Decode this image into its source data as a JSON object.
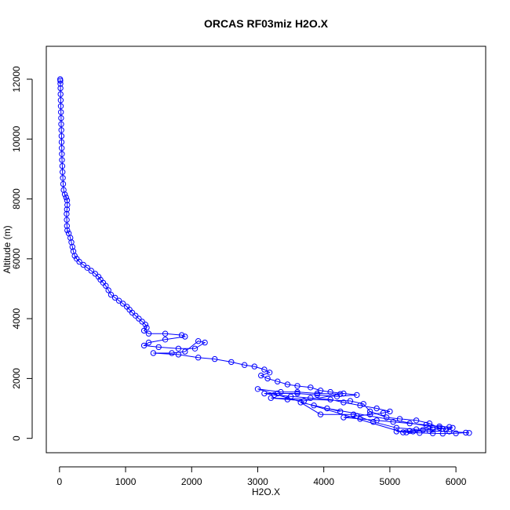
{
  "chart_data": {
    "type": "scatter",
    "title": "ORCAS RF03miz H2O.X",
    "xlabel": "H2O.X",
    "ylabel": "Altitude (m)",
    "xlim": [
      -200,
      6450
    ],
    "ylim": [
      -480,
      13100
    ],
    "x_ticks": [
      0,
      1000,
      2000,
      3000,
      4000,
      5000,
      6000
    ],
    "y_ticks": [
      0,
      2000,
      4000,
      6000,
      8000,
      10000,
      12000
    ],
    "grid": false,
    "series_color": "#0000ff",
    "series": [
      {
        "points": [
          [
            10,
            12000
          ],
          [
            12,
            11950
          ],
          [
            14,
            11850
          ],
          [
            15,
            11700
          ],
          [
            16,
            11500
          ],
          [
            18,
            11300
          ],
          [
            20,
            11100
          ],
          [
            22,
            10900
          ],
          [
            24,
            10700
          ],
          [
            26,
            10500
          ],
          [
            28,
            10300
          ],
          [
            30,
            10100
          ],
          [
            32,
            9900
          ],
          [
            34,
            9700
          ],
          [
            36,
            9500
          ],
          [
            38,
            9300
          ],
          [
            42,
            9100
          ],
          [
            46,
            8900
          ],
          [
            50,
            8700
          ],
          [
            55,
            8500
          ],
          [
            62,
            8300
          ],
          [
            80,
            8150
          ],
          [
            100,
            8050
          ],
          [
            115,
            7950
          ],
          [
            118,
            7800
          ],
          [
            112,
            7650
          ],
          [
            108,
            7500
          ],
          [
            110,
            7300
          ],
          [
            112,
            7100
          ],
          [
            118,
            6950
          ],
          [
            140,
            6850
          ],
          [
            165,
            6700
          ],
          [
            180,
            6550
          ],
          [
            195,
            6400
          ],
          [
            210,
            6250
          ],
          [
            230,
            6100
          ],
          [
            260,
            6000
          ],
          [
            300,
            5900
          ],
          [
            360,
            5800
          ],
          [
            420,
            5700
          ],
          [
            480,
            5600
          ],
          [
            540,
            5500
          ],
          [
            590,
            5400
          ],
          [
            620,
            5300
          ],
          [
            660,
            5200
          ],
          [
            700,
            5100
          ],
          [
            740,
            4950
          ],
          [
            780,
            4800
          ],
          [
            840,
            4700
          ],
          [
            900,
            4600
          ],
          [
            960,
            4500
          ],
          [
            1020,
            4400
          ],
          [
            1060,
            4300
          ],
          [
            1100,
            4200
          ],
          [
            1150,
            4100
          ],
          [
            1200,
            4000
          ],
          [
            1250,
            3900
          ],
          [
            1300,
            3800
          ],
          [
            1320,
            3700
          ],
          [
            1280,
            3600
          ],
          [
            1350,
            3500
          ],
          [
            1600,
            3500
          ],
          [
            1850,
            3450
          ],
          [
            1900,
            3400
          ],
          [
            1600,
            3300
          ],
          [
            1350,
            3200
          ],
          [
            1280,
            3100
          ],
          [
            1500,
            3050
          ],
          [
            1800,
            3000
          ],
          [
            2050,
            3000
          ],
          [
            2200,
            3200
          ],
          [
            2100,
            3250
          ],
          [
            1900,
            2900
          ],
          [
            1700,
            2850
          ],
          [
            1420,
            2850
          ],
          [
            1800,
            2800
          ],
          [
            2100,
            2700
          ],
          [
            2350,
            2650
          ],
          [
            2600,
            2550
          ],
          [
            2800,
            2450
          ],
          [
            2950,
            2400
          ],
          [
            3100,
            2300
          ],
          [
            3180,
            2200
          ],
          [
            3050,
            2100
          ],
          [
            3150,
            2000
          ],
          [
            3300,
            1900
          ],
          [
            3450,
            1800
          ],
          [
            3600,
            1750
          ],
          [
            3800,
            1700
          ],
          [
            3950,
            1600
          ],
          [
            4100,
            1550
          ],
          [
            4300,
            1500
          ],
          [
            4500,
            1450
          ],
          [
            4200,
            1400
          ],
          [
            3900,
            1450
          ],
          [
            3600,
            1500
          ],
          [
            3300,
            1500
          ],
          [
            3100,
            1500
          ],
          [
            3250,
            1450
          ],
          [
            3500,
            1400
          ],
          [
            3800,
            1350
          ],
          [
            4100,
            1300
          ],
          [
            4300,
            1200
          ],
          [
            4550,
            1100
          ],
          [
            4800,
            1000
          ],
          [
            5000,
            900
          ],
          [
            4900,
            850
          ],
          [
            4700,
            800
          ],
          [
            4500,
            750
          ],
          [
            4300,
            700
          ],
          [
            4550,
            650
          ],
          [
            4800,
            600
          ],
          [
            5050,
            550
          ],
          [
            5300,
            500
          ],
          [
            5550,
            450
          ],
          [
            5750,
            400
          ],
          [
            5900,
            380
          ],
          [
            5950,
            350
          ],
          [
            5800,
            320
          ],
          [
            5650,
            300
          ],
          [
            5500,
            280
          ],
          [
            5300,
            250
          ],
          [
            5100,
            230
          ],
          [
            5250,
            200
          ],
          [
            5450,
            180
          ],
          [
            5650,
            170
          ],
          [
            5800,
            160
          ],
          [
            6000,
            170
          ],
          [
            6150,
            190
          ],
          [
            6200,
            180
          ],
          [
            5900,
            230
          ],
          [
            5600,
            250
          ],
          [
            5350,
            230
          ],
          [
            5200,
            200
          ],
          [
            3000,
            1650
          ],
          [
            3350,
            1550
          ],
          [
            3600,
            1550
          ],
          [
            3900,
            1500
          ],
          [
            4250,
            1480
          ],
          [
            3700,
            1250
          ],
          [
            3450,
            1300
          ],
          [
            3200,
            1350
          ],
          [
            4400,
            1250
          ],
          [
            4600,
            1150
          ],
          [
            4700,
            900
          ],
          [
            4950,
            700
          ],
          [
            5150,
            650
          ],
          [
            5400,
            600
          ],
          [
            5600,
            500
          ],
          [
            5750,
            350
          ],
          [
            5850,
            300
          ],
          [
            4050,
            1000
          ],
          [
            4250,
            900
          ],
          [
            3850,
            1100
          ],
          [
            3650,
            1200
          ],
          [
            3950,
            800
          ],
          [
            4450,
            800
          ],
          [
            4750,
            550
          ],
          [
            5100,
            350
          ],
          [
            5400,
            300
          ],
          [
            5650,
            350
          ]
        ]
      }
    ]
  }
}
